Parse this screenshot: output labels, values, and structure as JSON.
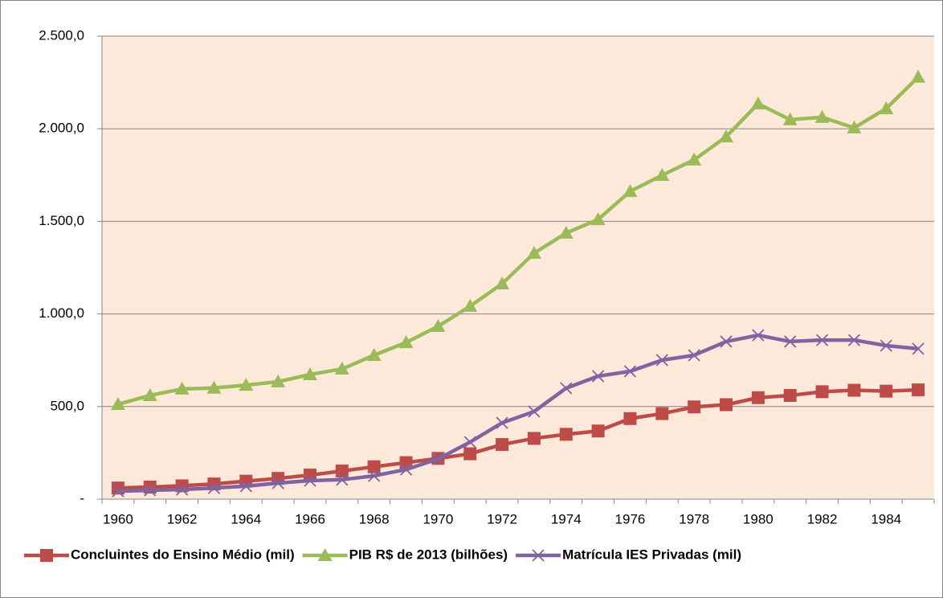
{
  "chart_data": {
    "type": "line",
    "categories": [
      "1960",
      null,
      "1962",
      null,
      "1964",
      null,
      "1966",
      null,
      "1968",
      null,
      "1970",
      null,
      "1972",
      null,
      "1974",
      null,
      "1976",
      null,
      "1978",
      null,
      "1980",
      null,
      "1982",
      null,
      "1984",
      null
    ],
    "series": [
      {
        "name": "Concluintes do Ensino Médio (mil)",
        "color": "#be4b48",
        "marker": "square",
        "values": [
          60,
          65,
          72,
          82,
          97,
          112,
          130,
          152,
          175,
          197,
          220,
          245,
          295,
          328,
          350,
          368,
          435,
          462,
          498,
          510,
          548,
          560,
          580,
          588,
          583,
          590
        ]
      },
      {
        "name": "PIB R$ de 2013 (bilhões)",
        "color": "#9bbb59",
        "marker": "triangle",
        "values": [
          512,
          560,
          595,
          600,
          616,
          634,
          673,
          703,
          777,
          846,
          933,
          1042,
          1163,
          1328,
          1437,
          1510,
          1662,
          1749,
          1832,
          1957,
          2135,
          2049,
          2062,
          2005,
          2109,
          2279
        ]
      },
      {
        "name": "Matrícula IES Privadas (mil)",
        "color": "#8064a2",
        "marker": "x",
        "values": [
          43,
          48,
          52,
          60,
          70,
          87,
          100,
          105,
          126,
          160,
          217,
          308,
          412,
          473,
          599,
          664,
          690,
          751,
          777,
          851,
          885,
          851,
          859,
          859,
          829,
          812
        ]
      }
    ],
    "ylim": [
      0,
      2500
    ],
    "yticks": [
      {
        "value": 0,
        "label": "-"
      },
      {
        "value": 500,
        "label": "500,0"
      },
      {
        "value": 1000,
        "label": "1.000,0"
      },
      {
        "value": 1500,
        "label": "1.500,0"
      },
      {
        "value": 2000,
        "label": "2.000,0"
      },
      {
        "value": 2500,
        "label": "2.500,0"
      }
    ],
    "grid": true,
    "legend": "bottom",
    "plot_background": "#fde9d9"
  }
}
